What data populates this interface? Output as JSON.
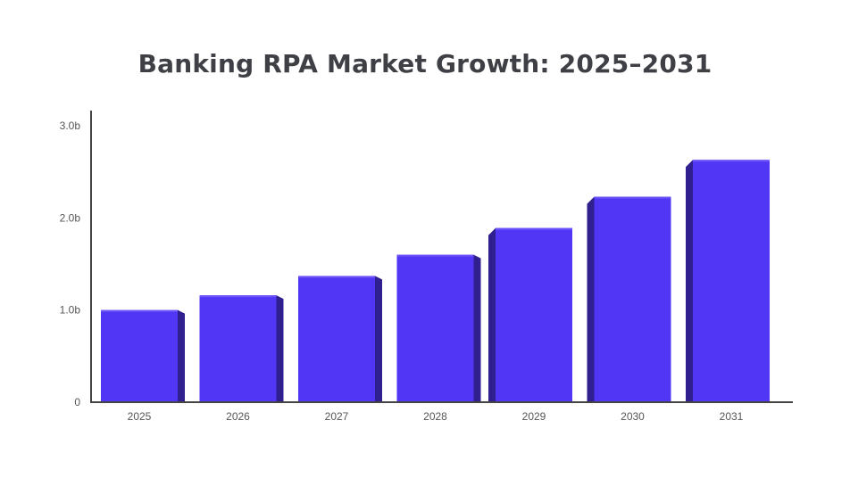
{
  "chart_data": {
    "type": "bar",
    "title": "Banking RPA Market Growth: 2025–2031",
    "categories": [
      "2025",
      "2026",
      "2027",
      "2028",
      "2029",
      "2030",
      "2031"
    ],
    "values": [
      1.0,
      1.16,
      1.37,
      1.6,
      1.89,
      2.23,
      2.63
    ],
    "y_ticks": [
      {
        "value": 0,
        "label": "0"
      },
      {
        "value": 1,
        "label": "1.0b"
      },
      {
        "value": 2,
        "label": "2.0b"
      },
      {
        "value": 3,
        "label": "3.0b"
      }
    ],
    "ylim": [
      0,
      3
    ],
    "grid": false,
    "legend": "none",
    "colors": {
      "bar_front": "#5236f5",
      "bar_side": "#2f1f8f",
      "bar_top": "#6d55f7",
      "axis": "#444444"
    }
  }
}
